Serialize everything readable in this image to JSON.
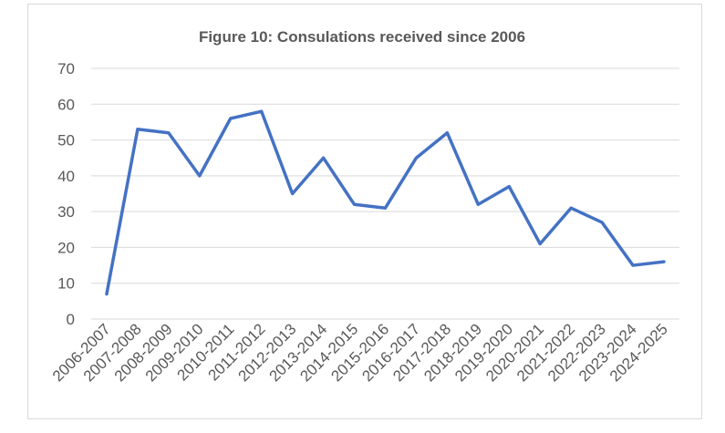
{
  "chart_data": {
    "type": "line",
    "title": "Figure 10: Consulations received since 2006",
    "xlabel": "",
    "ylabel": "",
    "ylim": [
      0,
      70
    ],
    "yticks": [
      0,
      10,
      20,
      30,
      40,
      50,
      60,
      70
    ],
    "grid": true,
    "legend": "none",
    "line_color": "#4472c4",
    "categories": [
      "2006-2007",
      "2007-2008",
      "2008-2009",
      "2009-2010",
      "2010-2011",
      "2011-2012",
      "2012-2013",
      "2013-2014",
      "2014-2015",
      "2015-2016",
      "2016-2017",
      "2017-2018",
      "2018-2019",
      "2019-2020",
      "2020-2021",
      "2021-2022",
      "2022-2023",
      "2023-2024",
      "2024-2025"
    ],
    "values": [
      7,
      53,
      52,
      40,
      56,
      58,
      35,
      45,
      32,
      31,
      45,
      52,
      32,
      37,
      21,
      31,
      27,
      15,
      16
    ]
  }
}
